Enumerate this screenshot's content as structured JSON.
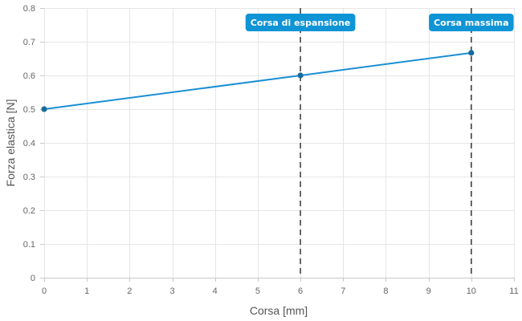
{
  "chart_data": {
    "type": "line",
    "title": "",
    "xlabel": "Corsa [mm]",
    "ylabel": "Forza elastica [N]",
    "xlim": [
      0,
      11
    ],
    "ylim": [
      0,
      0.8
    ],
    "x_ticks": [
      "0",
      "1",
      "2",
      "3",
      "4",
      "5",
      "6",
      "7",
      "8",
      "9",
      "10",
      "11"
    ],
    "y_ticks": [
      "0",
      "0.1",
      "0.2",
      "0.3",
      "0.4",
      "0.5",
      "0.6",
      "0.7",
      "0.8"
    ],
    "grid": true,
    "legend": "none",
    "series": [
      {
        "x": [
          0,
          6,
          10
        ],
        "y": [
          0.5,
          0.6,
          0.667
        ],
        "color": "#1b8fd3"
      }
    ],
    "annotations": [
      {
        "x": 6,
        "label": "Corsa di espansione"
      },
      {
        "x": 10,
        "label": "Corsa massima"
      }
    ],
    "annotation_color": "#0f94d6",
    "marker_color": "#166b9b",
    "line_color": "#1b8fd3"
  }
}
